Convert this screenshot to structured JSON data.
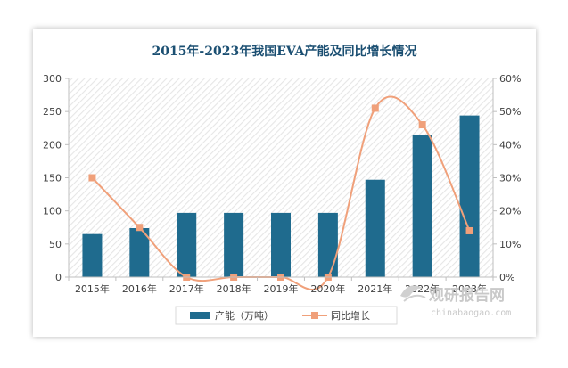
{
  "chart_data": {
    "type": "bar+line",
    "title": "2015年-2023年我国EVA产能及同比增长情况",
    "categories": [
      "2015年",
      "2016年",
      "2017年",
      "2018年",
      "2019年",
      "2020年",
      "2021年",
      "2022年",
      "2023年"
    ],
    "series": [
      {
        "name": "产能（万吨）",
        "type": "bar",
        "axis": "left",
        "color": "#1f6b8e",
        "values": [
          65,
          74,
          97,
          97,
          97,
          97,
          147,
          215,
          244
        ]
      },
      {
        "name": "同比增长",
        "type": "line",
        "axis": "right",
        "color": "#f0a07a",
        "values": [
          30,
          15,
          0,
          0,
          0,
          0,
          51,
          46,
          14
        ]
      }
    ],
    "y_left": {
      "min": 0,
      "max": 300,
      "ticks": [
        "0",
        "50",
        "100",
        "150",
        "200",
        "250",
        "300"
      ]
    },
    "y_right": {
      "min": 0,
      "max": 60,
      "ticks": [
        "0%",
        "10%",
        "20%",
        "30%",
        "40%",
        "50%",
        "60%"
      ]
    },
    "grid": false,
    "plot_background": "diagonal-hatch",
    "legend_position": "bottom"
  },
  "watermark": {
    "cn": "观研报告网",
    "en": "chinabaogao.com",
    "logo_icon": "wave-swoosh-icon"
  }
}
